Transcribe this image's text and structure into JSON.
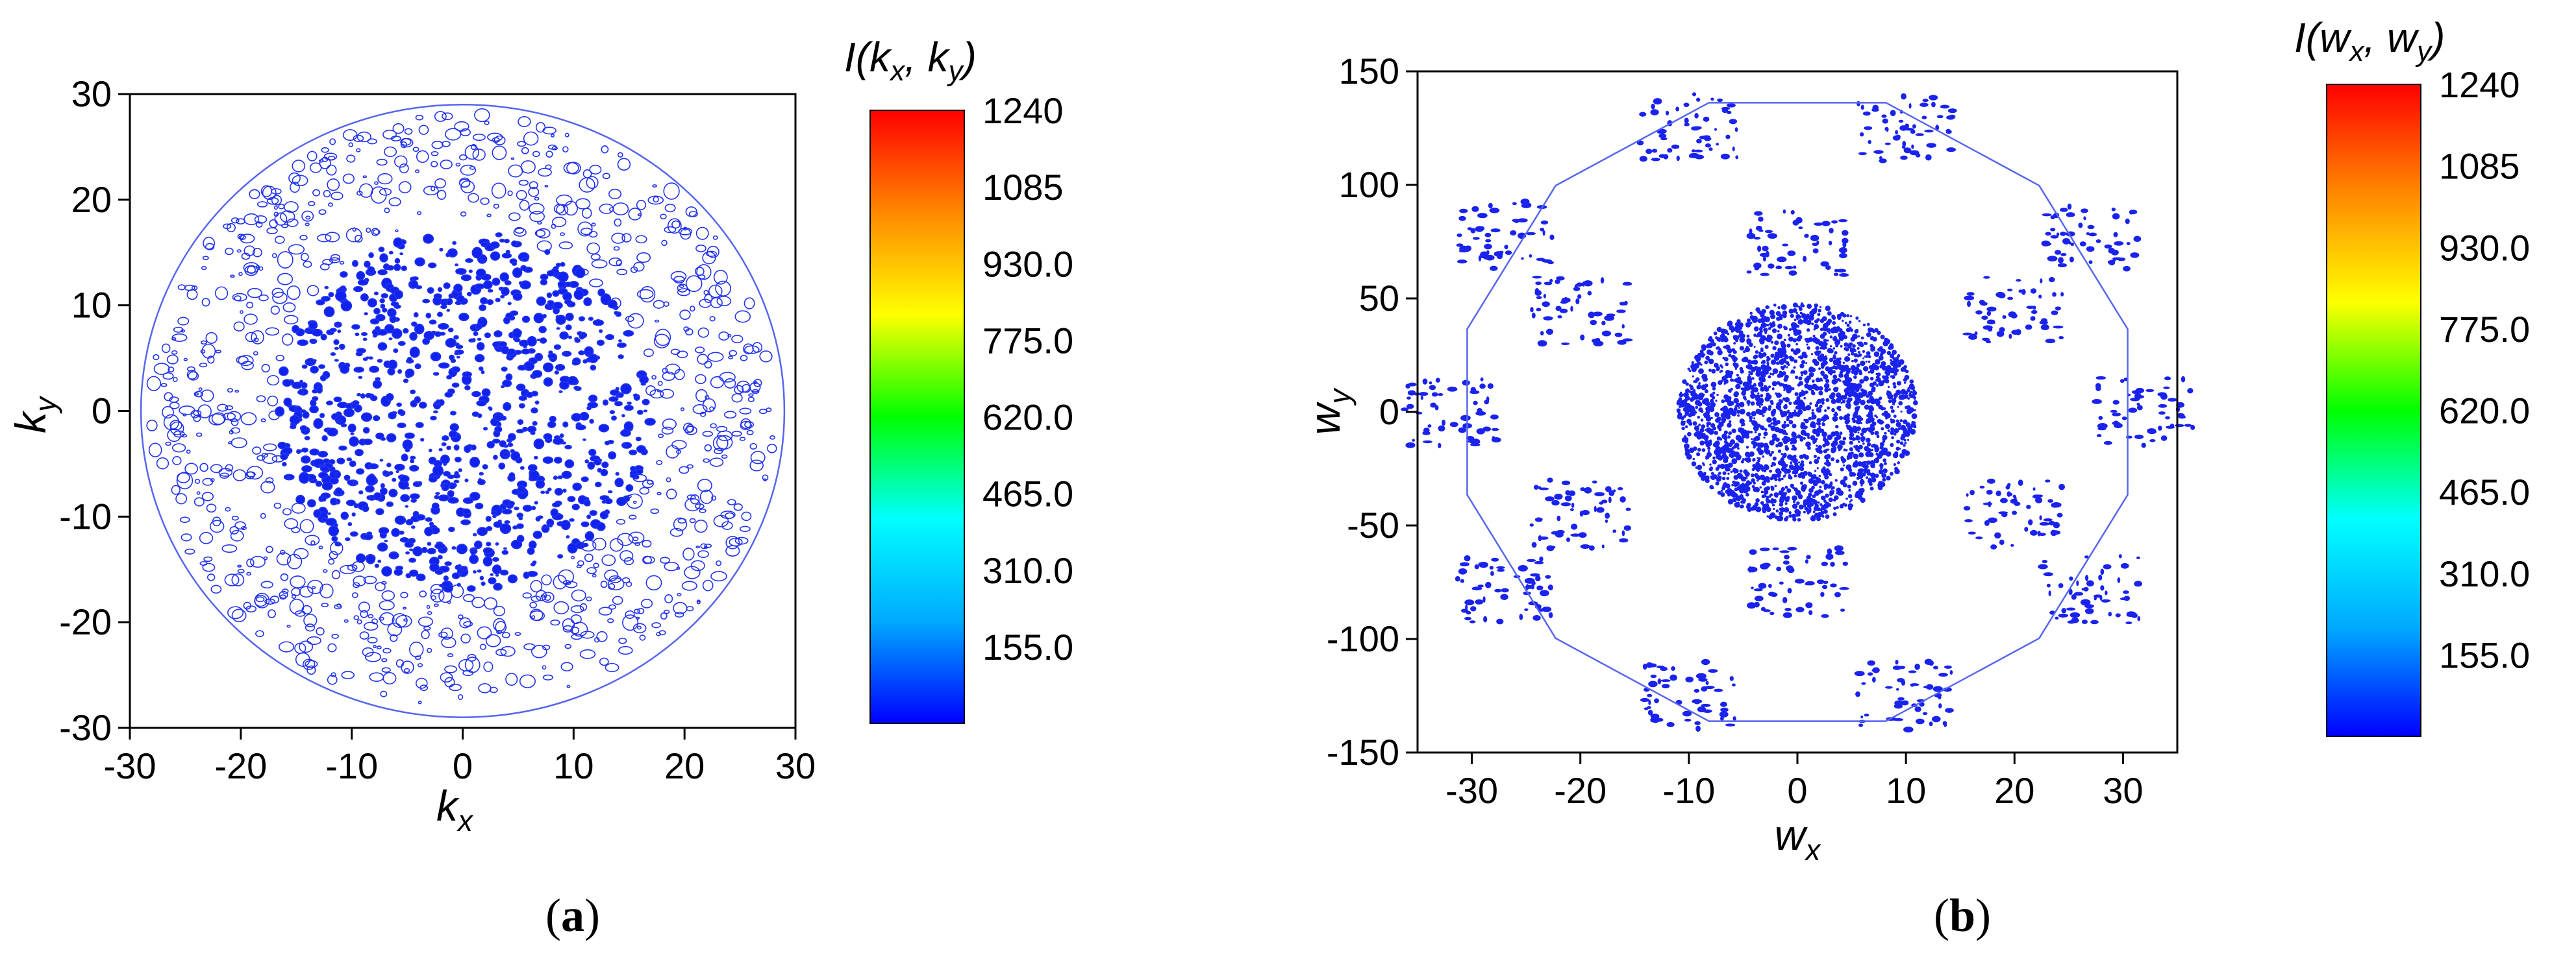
{
  "chart_data": [
    {
      "type": "heatmap",
      "panel_label": "a",
      "xlabel": "k",
      "xlabel_sub": "x",
      "ylabel": "k",
      "ylabel_sub": "y",
      "colorbar_title": "I(k",
      "colorbar_title_sub1": "x",
      "colorbar_title_mid": ", k",
      "colorbar_title_sub2": "y",
      "colorbar_title_end": ")",
      "xlim": [
        -30,
        30
      ],
      "ylim": [
        -30,
        30
      ],
      "xticks": [
        "-30",
        "-20",
        "-10",
        "0",
        "10",
        "20",
        "30"
      ],
      "yticks": [
        "-30",
        "-20",
        "-10",
        "0",
        "10",
        "20",
        "30"
      ],
      "colorbar_range": [
        0,
        1240
      ],
      "colorbar_ticks": [
        "1240",
        "1085",
        "930.0",
        "775.0",
        "620.0",
        "465.0",
        "310.0",
        "155.0"
      ],
      "colormap": [
        "#0000ff",
        "#00aaff",
        "#00ffff",
        "#00ff00",
        "#ffff00",
        "#ff8800",
        "#ff0000"
      ],
      "boundary": "circle",
      "boundary_radius": 29
    },
    {
      "type": "heatmap",
      "panel_label": "b",
      "xlabel": "w",
      "xlabel_sub": "x",
      "ylabel": "w",
      "ylabel_sub": "y",
      "colorbar_title": "I(w",
      "colorbar_title_sub1": "x",
      "colorbar_title_mid": ", w",
      "colorbar_title_sub2": "y",
      "colorbar_title_end": ")",
      "xlim": [
        -35,
        35
      ],
      "ylim": [
        -150,
        150
      ],
      "xticks": [
        "-30",
        "-20",
        "-10",
        "0",
        "10",
        "20",
        "30"
      ],
      "yticks": [
        "-150",
        "-100",
        "-50",
        "0",
        "50",
        "100",
        "150"
      ],
      "colorbar_range": [
        0,
        1240
      ],
      "colorbar_ticks": [
        "1240",
        "1085",
        "930.0",
        "775.0",
        "620.0",
        "465.0",
        "310.0",
        "155.0"
      ],
      "colormap": [
        "#0000ff",
        "#00aaff",
        "#00ffff",
        "#00ff00",
        "#ffff00",
        "#ff8800",
        "#ff0000"
      ],
      "boundary": "polygon",
      "boundary_x": 31.5,
      "boundary_y": 141
    }
  ]
}
